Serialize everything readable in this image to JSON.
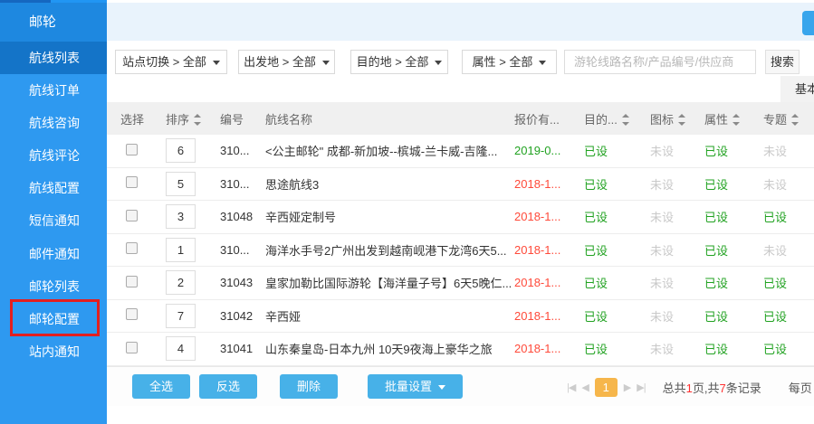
{
  "sidebar": {
    "header": "邮轮",
    "items": [
      {
        "label": "航线列表",
        "active": true
      },
      {
        "label": "航线订单"
      },
      {
        "label": "航线咨询"
      },
      {
        "label": "航线评论"
      },
      {
        "label": "航线配置"
      },
      {
        "label": "短信通知"
      },
      {
        "label": "邮件通知"
      },
      {
        "label": "邮轮列表"
      },
      {
        "label": "邮轮配置",
        "annotated": true
      },
      {
        "label": "站内通知"
      }
    ]
  },
  "filters": [
    {
      "label": "站点切换 > 全部"
    },
    {
      "label": "出发地 > 全部"
    },
    {
      "label": "目的地 > 全部"
    },
    {
      "label": "属性 > 全部"
    }
  ],
  "search": {
    "placeholder": "游轮线路名称/产品编号/供应商",
    "button": "搜索"
  },
  "tab_partial": "基本",
  "table": {
    "columns": {
      "select": "选择",
      "sort": "排序",
      "code": "编号",
      "name": "航线名称",
      "quote": "报价有...",
      "dest": "目的...",
      "icon": "图标",
      "attr": "属性",
      "topic": "专题"
    },
    "rows": [
      {
        "sort": "6",
        "code": "310...",
        "name": "<公主邮轮\" 成都-新加坡--槟城-兰卡威-吉隆...",
        "quote": "2019-0...",
        "quote_color": "green",
        "dest": "已设",
        "icon": "未设",
        "attr": "已设",
        "topic": "未设"
      },
      {
        "sort": "5",
        "code": "310...",
        "name": "思途航线3",
        "quote": "2018-1...",
        "quote_color": "red",
        "dest": "已设",
        "icon": "未设",
        "attr": "已设",
        "topic": "未设"
      },
      {
        "sort": "3",
        "code": "31048",
        "name": "辛西娅定制号",
        "quote": "2018-1...",
        "quote_color": "red",
        "dest": "已设",
        "icon": "未设",
        "attr": "已设",
        "topic": "已设"
      },
      {
        "sort": "1",
        "code": "310...",
        "name": "海洋水手号2广州出发到越南岘港下龙湾6天5...",
        "quote": "2018-1...",
        "quote_color": "red",
        "dest": "已设",
        "icon": "未设",
        "attr": "已设",
        "topic": "未设"
      },
      {
        "sort": "2",
        "code": "31043",
        "name": "皇家加勒比国际游轮【海洋量子号】6天5晚仁...",
        "quote": "2018-1...",
        "quote_color": "red",
        "dest": "已设",
        "icon": "未设",
        "attr": "已设",
        "topic": "已设"
      },
      {
        "sort": "7",
        "code": "31042",
        "name": "辛西娅",
        "quote": "2018-1...",
        "quote_color": "red",
        "dest": "已设",
        "icon": "未设",
        "attr": "已设",
        "topic": "已设"
      },
      {
        "sort": "4",
        "code": "31041",
        "name": "山东秦皇岛-日本九州 10天9夜海上豪华之旅",
        "quote": "2018-1...",
        "quote_color": "red",
        "dest": "已设",
        "icon": "未设",
        "attr": "已设",
        "topic": "已设"
      }
    ]
  },
  "footer": {
    "select_all": "全选",
    "invert_select": "反选",
    "delete": "删除",
    "batch_set": "批量设置",
    "pagination": {
      "icons": {
        "first": "|◀",
        "prev": "◀",
        "next": "▶",
        "last": "▶|"
      },
      "current_page": "1",
      "total_prefix": "总共",
      "total_pages": "1",
      "total_mid": "页,共",
      "total_records": "7",
      "total_suffix": "条记录",
      "per_page_partial": "每页"
    }
  },
  "colors": {
    "sidebar_blue": "#2e99f0",
    "sidebar_active_blue": "#1474c8",
    "sidebar_header_blue": "#1e88e0",
    "action_button_blue": "#47b1e8",
    "status_set_green": "#21a221",
    "status_unset_gray": "#c9c9c9",
    "date_red": "#ff4a3a",
    "date_green": "#21a221",
    "page_orange": "#f6b64b",
    "annotation_red": "#e31f1f"
  }
}
